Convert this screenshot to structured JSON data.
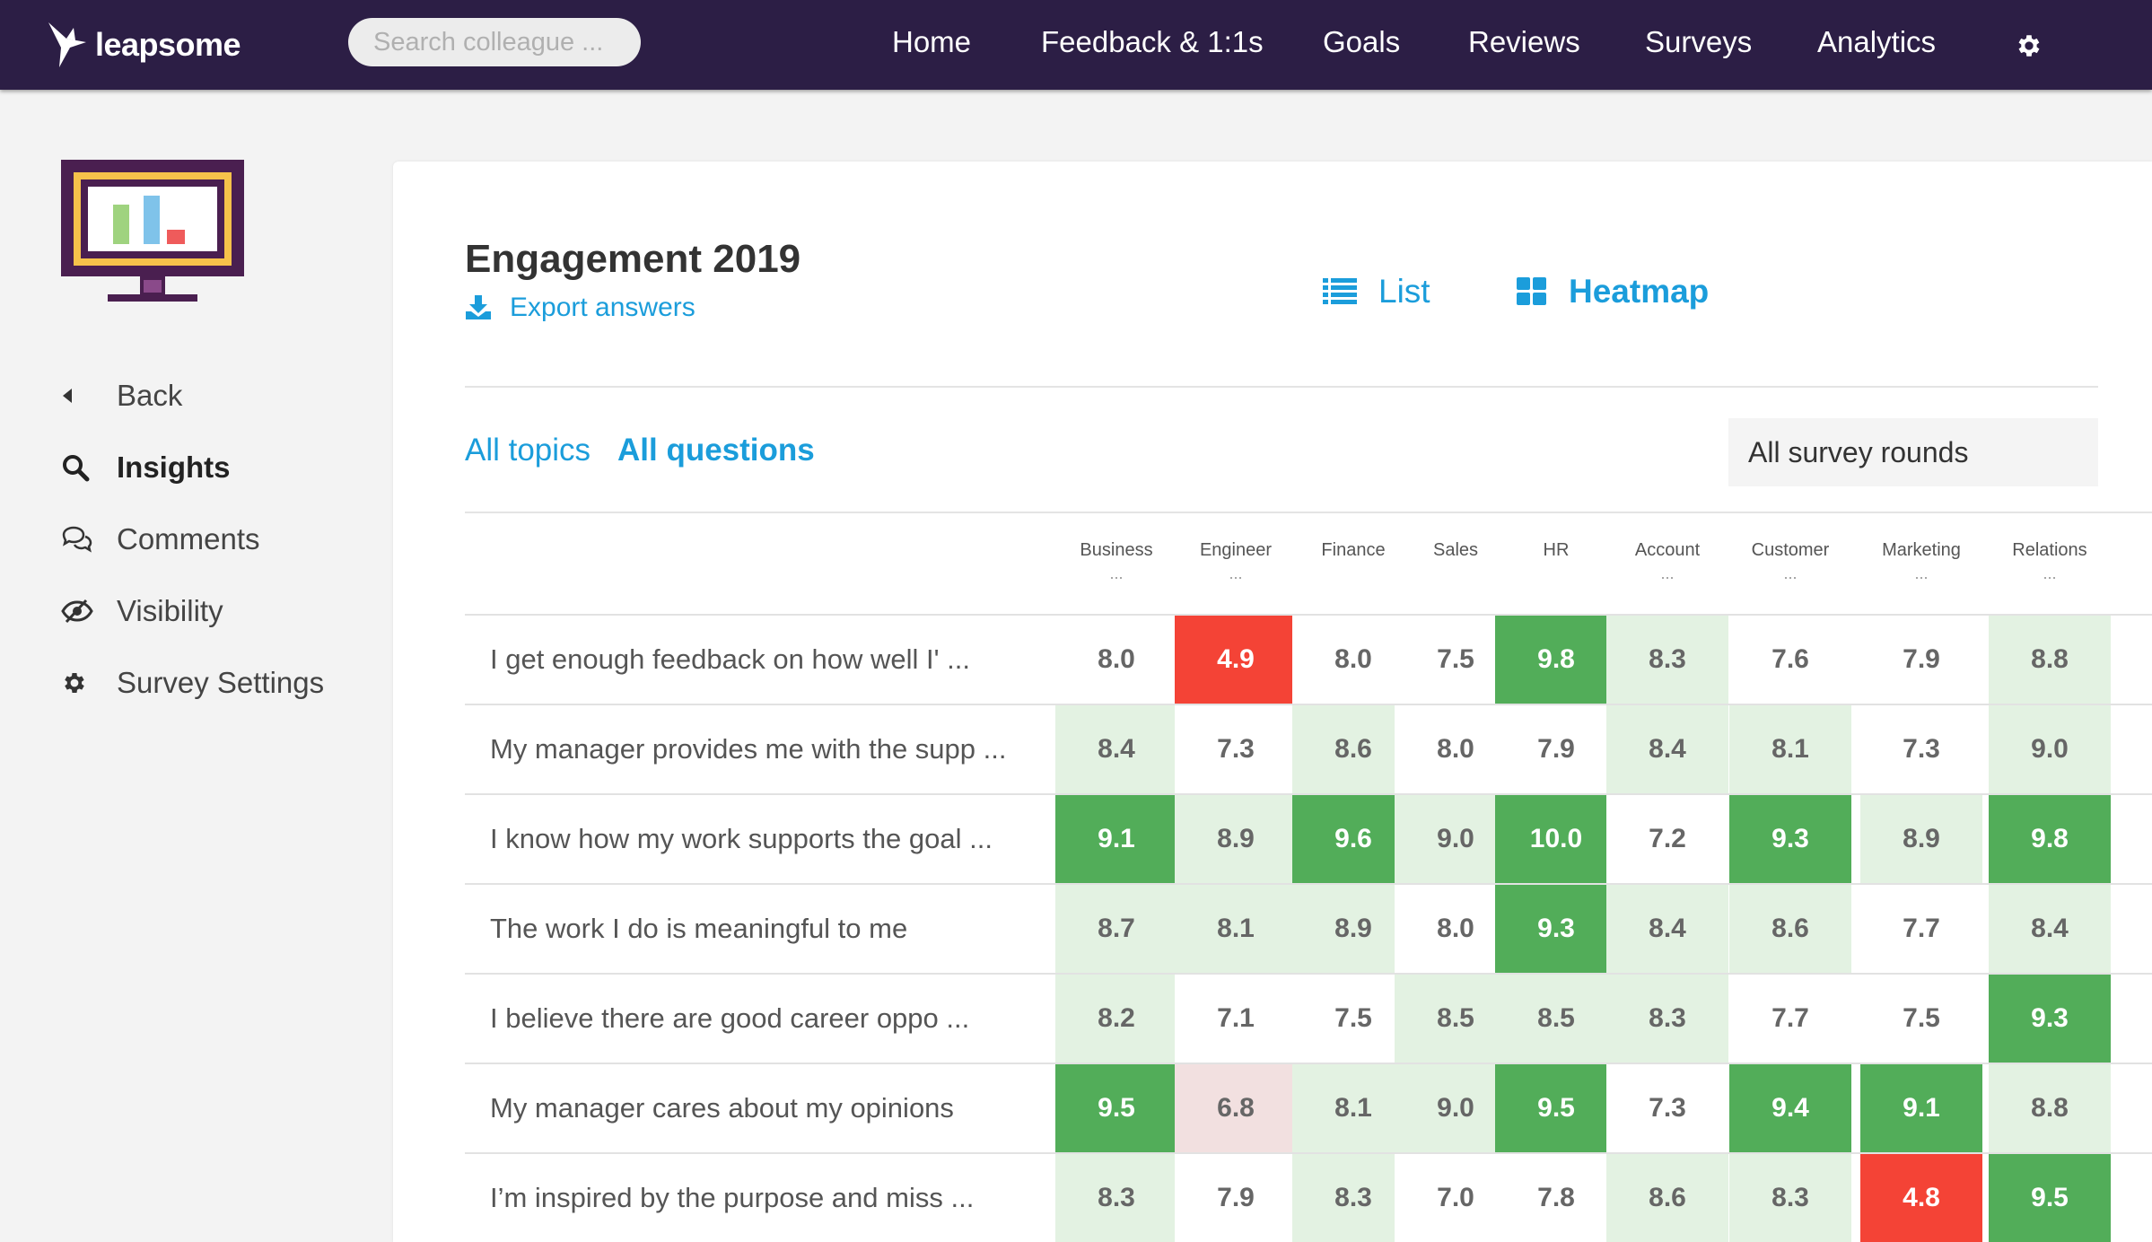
{
  "app": {
    "logo_text": "leapsome"
  },
  "search": {
    "placeholder": "Search colleague ..."
  },
  "nav": [
    "Home",
    "Feedback & 1:1s",
    "Goals",
    "Reviews",
    "Surveys",
    "Analytics"
  ],
  "icons": {
    "logo": "bird-logo-icon",
    "settings": "gear-icon",
    "illustration": "monitor-chart-icon",
    "back": "caret-left-icon",
    "insights": "search-icon",
    "comments": "chat-bubbles-icon",
    "visibility": "eye-slash-icon",
    "survey_settings": "gear-icon",
    "export": "download-icon",
    "list": "list-icon",
    "heatmap": "grid-icon"
  },
  "sidebar": {
    "items": [
      {
        "label": "Back",
        "active": false
      },
      {
        "label": "Insights",
        "active": true
      },
      {
        "label": "Comments",
        "active": false
      },
      {
        "label": "Visibility",
        "active": false
      },
      {
        "label": "Survey Settings",
        "active": false
      }
    ]
  },
  "survey": {
    "title": "Engagement 2019",
    "export_label": "Export answers",
    "views": {
      "list_label": "List",
      "heatmap_label": "Heatmap",
      "active": "Heatmap"
    },
    "tabs": {
      "topics_label": "All topics",
      "questions_label": "All questions",
      "active": "All questions"
    },
    "rounds_label": "All survey rounds"
  },
  "colors": {
    "topbar": "#2c1e45",
    "accent": "#1b9ddb",
    "strong_green": "#52ad59",
    "light_green": "#e3f2e2",
    "strong_red": "#f44336",
    "light_red": "#f2e0e0",
    "neutral": "#ffffff"
  },
  "heatmap": {
    "columns": [
      {
        "label": "Business",
        "truncated": true
      },
      {
        "label": "Engineer",
        "truncated": true
      },
      {
        "label": "Finance",
        "truncated": false
      },
      {
        "label": "Sales",
        "truncated": false
      },
      {
        "label": "HR",
        "truncated": false
      },
      {
        "label": "Account",
        "truncated": true
      },
      {
        "label": "Customer",
        "truncated": true
      },
      {
        "label": "Marketing",
        "truncated": true
      },
      {
        "label": "Relations",
        "truncated": true
      }
    ],
    "rows": [
      {
        "question": "I get enough feedback on how well I' ...",
        "values": [
          "8.0",
          "4.9",
          "8.0",
          "7.5",
          "9.8",
          "8.3",
          "7.6",
          "7.9",
          "8.8"
        ],
        "levels": [
          "neutral",
          "strong_red",
          "neutral",
          "neutral",
          "strong_green",
          "light_green",
          "neutral",
          "neutral",
          "light_green"
        ]
      },
      {
        "question": "My manager provides me with the supp ...",
        "values": [
          "8.4",
          "7.3",
          "8.6",
          "8.0",
          "7.9",
          "8.4",
          "8.1",
          "7.3",
          "9.0"
        ],
        "levels": [
          "light_green",
          "neutral",
          "light_green",
          "neutral",
          "neutral",
          "light_green",
          "light_green",
          "neutral",
          "light_green"
        ]
      },
      {
        "question": "I know how my work supports the goal ...",
        "values": [
          "9.1",
          "8.9",
          "9.6",
          "9.0",
          "10.0",
          "7.2",
          "9.3",
          "8.9",
          "9.8"
        ],
        "levels": [
          "strong_green",
          "light_green",
          "strong_green",
          "light_green",
          "strong_green",
          "neutral",
          "strong_green",
          "light_green",
          "strong_green"
        ]
      },
      {
        "question": "The work I do is meaningful to me",
        "values": [
          "8.7",
          "8.1",
          "8.9",
          "8.0",
          "9.3",
          "8.4",
          "8.6",
          "7.7",
          "8.4"
        ],
        "levels": [
          "light_green",
          "light_green",
          "light_green",
          "neutral",
          "strong_green",
          "light_green",
          "light_green",
          "neutral",
          "light_green"
        ]
      },
      {
        "question": "I believe there are good career oppo ...",
        "values": [
          "8.2",
          "7.1",
          "7.5",
          "8.5",
          "8.5",
          "8.3",
          "7.7",
          "7.5",
          "9.3"
        ],
        "levels": [
          "light_green",
          "neutral",
          "neutral",
          "light_green",
          "light_green",
          "light_green",
          "neutral",
          "neutral",
          "strong_green"
        ]
      },
      {
        "question": "My manager cares about my opinions",
        "values": [
          "9.5",
          "6.8",
          "8.1",
          "9.0",
          "9.5",
          "7.3",
          "9.4",
          "9.1",
          "8.8"
        ],
        "levels": [
          "strong_green",
          "light_red",
          "light_green",
          "light_green",
          "strong_green",
          "neutral",
          "strong_green",
          "strong_green",
          "light_green"
        ]
      },
      {
        "question": "I’m inspired by the purpose and miss ...",
        "values": [
          "8.3",
          "7.9",
          "8.3",
          "7.0",
          "7.8",
          "8.6",
          "8.3",
          "4.8",
          "9.5"
        ],
        "levels": [
          "light_green",
          "neutral",
          "light_green",
          "neutral",
          "neutral",
          "light_green",
          "light_green",
          "strong_red",
          "strong_green"
        ]
      }
    ]
  }
}
